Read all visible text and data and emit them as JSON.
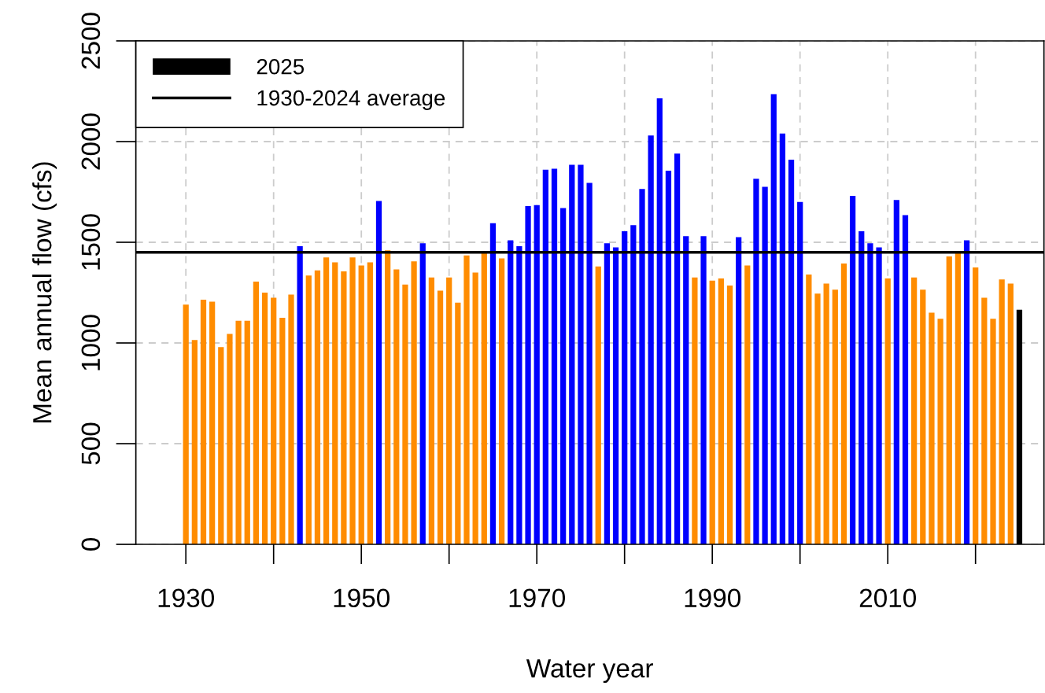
{
  "chart_data": {
    "type": "bar",
    "xlabel": "Water year",
    "ylabel": "Mean annual flow (cfs)",
    "series": [
      {
        "x": [
          1930,
          1931,
          1932,
          1933,
          1934,
          1935,
          1936,
          1937,
          1938,
          1939,
          1940,
          1941,
          1942,
          1943,
          1944,
          1945,
          1946,
          1947,
          1948,
          1949,
          1950,
          1951,
          1952,
          1953,
          1954,
          1955,
          1956,
          1957,
          1958,
          1959,
          1960,
          1961,
          1962,
          1963,
          1964,
          1965,
          1966,
          1967,
          1968,
          1969,
          1970,
          1971,
          1972,
          1973,
          1974,
          1975,
          1976,
          1977,
          1978,
          1979,
          1980,
          1981,
          1982,
          1983,
          1984,
          1985,
          1986,
          1987,
          1988,
          1989,
          1990,
          1991,
          1992,
          1993,
          1994,
          1995,
          1996,
          1997,
          1998,
          1999,
          2000,
          2001,
          2002,
          2003,
          2004,
          2005,
          2006,
          2007,
          2008,
          2009,
          2010,
          2011,
          2012,
          2013,
          2014,
          2015,
          2016,
          2017,
          2018,
          2019,
          2020,
          2021,
          2022,
          2023,
          2024
        ],
        "values": [
          1190,
          1015,
          1215,
          1205,
          980,
          1045,
          1110,
          1110,
          1305,
          1250,
          1225,
          1125,
          1240,
          1480,
          1335,
          1360,
          1425,
          1400,
          1355,
          1425,
          1385,
          1400,
          1705,
          1460,
          1365,
          1290,
          1405,
          1495,
          1325,
          1260,
          1325,
          1200,
          1435,
          1350,
          1445,
          1595,
          1420,
          1510,
          1480,
          1680,
          1685,
          1860,
          1865,
          1670,
          1885,
          1885,
          1795,
          1380,
          1495,
          1475,
          1555,
          1585,
          1765,
          2030,
          2215,
          1855,
          1940,
          1530,
          1325,
          1530,
          1310,
          1320,
          1285,
          1525,
          1385,
          1815,
          1775,
          2235,
          2040,
          1910,
          1700,
          1340,
          1245,
          1295,
          1265,
          1395,
          1730,
          1555,
          1495,
          1475,
          1320,
          1710,
          1635,
          1325,
          1265,
          1150,
          1120,
          1430,
          1445,
          1510,
          1375,
          1225,
          1120,
          1315,
          1295
        ],
        "colors": [
          "#ff8c00",
          "#ff8c00",
          "#ff8c00",
          "#ff8c00",
          "#ff8c00",
          "#ff8c00",
          "#ff8c00",
          "#ff8c00",
          "#ff8c00",
          "#ff8c00",
          "#ff8c00",
          "#ff8c00",
          "#ff8c00",
          "#0000ff",
          "#ff8c00",
          "#ff8c00",
          "#ff8c00",
          "#ff8c00",
          "#ff8c00",
          "#ff8c00",
          "#ff8c00",
          "#ff8c00",
          "#0000ff",
          "#ff8c00",
          "#ff8c00",
          "#ff8c00",
          "#ff8c00",
          "#0000ff",
          "#ff8c00",
          "#ff8c00",
          "#ff8c00",
          "#ff8c00",
          "#ff8c00",
          "#ff8c00",
          "#ff8c00",
          "#0000ff",
          "#ff8c00",
          "#0000ff",
          "#0000ff",
          "#0000ff",
          "#0000ff",
          "#0000ff",
          "#0000ff",
          "#0000ff",
          "#0000ff",
          "#0000ff",
          "#0000ff",
          "#ff8c00",
          "#0000ff",
          "#0000ff",
          "#0000ff",
          "#0000ff",
          "#0000ff",
          "#0000ff",
          "#0000ff",
          "#0000ff",
          "#0000ff",
          "#0000ff",
          "#ff8c00",
          "#0000ff",
          "#ff8c00",
          "#ff8c00",
          "#ff8c00",
          "#0000ff",
          "#ff8c00",
          "#0000ff",
          "#0000ff",
          "#0000ff",
          "#0000ff",
          "#0000ff",
          "#0000ff",
          "#ff8c00",
          "#ff8c00",
          "#ff8c00",
          "#ff8c00",
          "#ff8c00",
          "#0000ff",
          "#0000ff",
          "#0000ff",
          "#0000ff",
          "#ff8c00",
          "#0000ff",
          "#0000ff",
          "#ff8c00",
          "#ff8c00",
          "#ff8c00",
          "#ff8c00",
          "#ff8c00",
          "#ff8c00",
          "#0000ff",
          "#ff8c00",
          "#ff8c00",
          "#ff8c00",
          "#ff8c00",
          "#ff8c00"
        ]
      },
      {
        "name": "2025",
        "color": "#000000",
        "x": [
          2025
        ],
        "values": [
          1165
        ]
      }
    ],
    "xlim": [
      1924.3,
      2027.8
    ],
    "xticks": [
      1930,
      {
        "value": 1940,
        "label": null
      },
      1950,
      {
        "value": 1960,
        "label": null
      },
      1970,
      {
        "value": 1980,
        "label": null
      },
      1990,
      {
        "value": 2000,
        "label": null
      },
      2010,
      {
        "value": 2020,
        "label": null
      }
    ],
    "ylim": [
      0,
      2500
    ],
    "yticks": [
      0,
      500,
      1000,
      1500,
      2000,
      2500
    ],
    "ref_lines": [
      {
        "axis": "y",
        "value": 1450,
        "label": "1930-2024 average",
        "color": "#000000",
        "line_style": "solid"
      }
    ],
    "grid": true,
    "legend": "top left"
  }
}
